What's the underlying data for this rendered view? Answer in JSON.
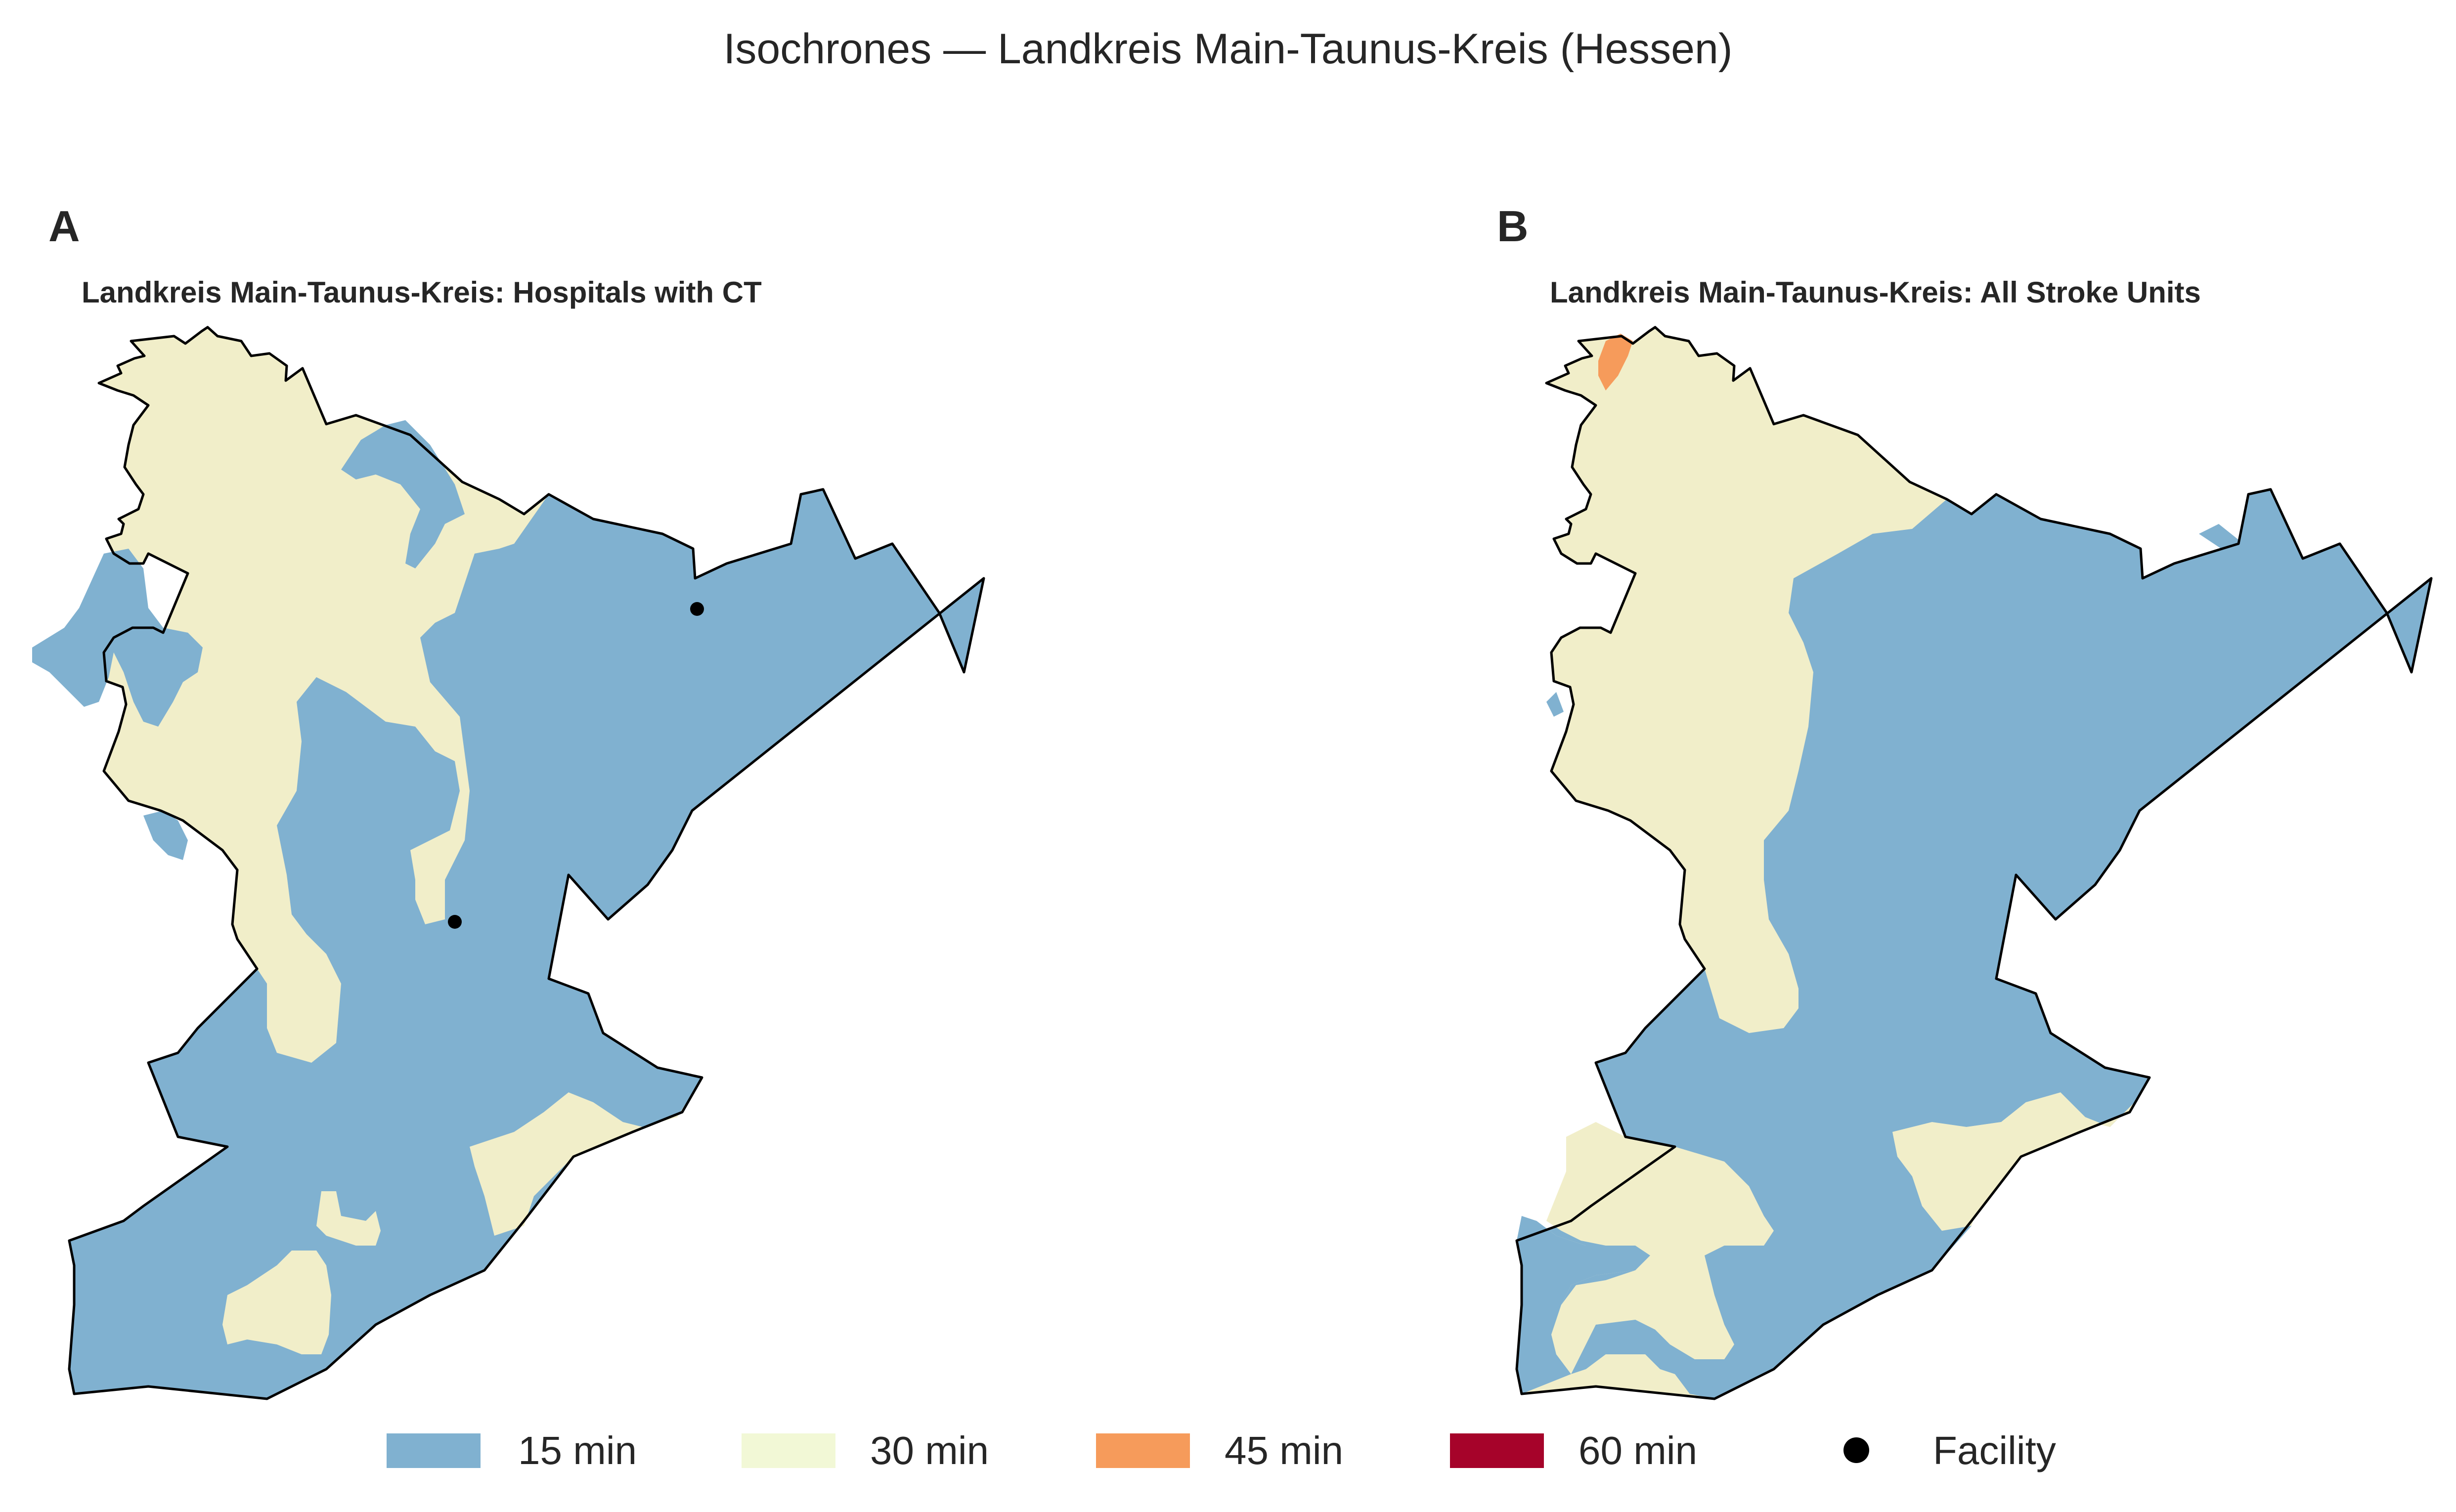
{
  "title": "Isochrones — Landkreis Main-Taunus-Kreis (Hessen)",
  "colors": {
    "min15": "#80b1d0",
    "min30": "#f1eec9",
    "min30_legend": "#f2f8d6",
    "min45": "#f69b5b",
    "min60": "#a6032a",
    "facility": "#000000"
  },
  "panels": [
    {
      "letter": "A",
      "title": "Landkreis Main-Taunus-Kreis: Hospitals with CT",
      "facility_count": 2
    },
    {
      "letter": "B",
      "title": "Landkreis Main-Taunus-Kreis: All Stroke Units",
      "facility_count": 0
    }
  ],
  "legend": {
    "items": [
      {
        "label": "15 min",
        "color": "#80b1d0",
        "kind": "patch"
      },
      {
        "label": "30 min",
        "color": "#f2f8d6",
        "kind": "patch"
      },
      {
        "label": "45 min",
        "color": "#f69b5b",
        "kind": "patch"
      },
      {
        "label": "60 min",
        "color": "#a6032a",
        "kind": "patch"
      },
      {
        "label": "Facility",
        "color": "#000000",
        "kind": "marker"
      }
    ]
  }
}
